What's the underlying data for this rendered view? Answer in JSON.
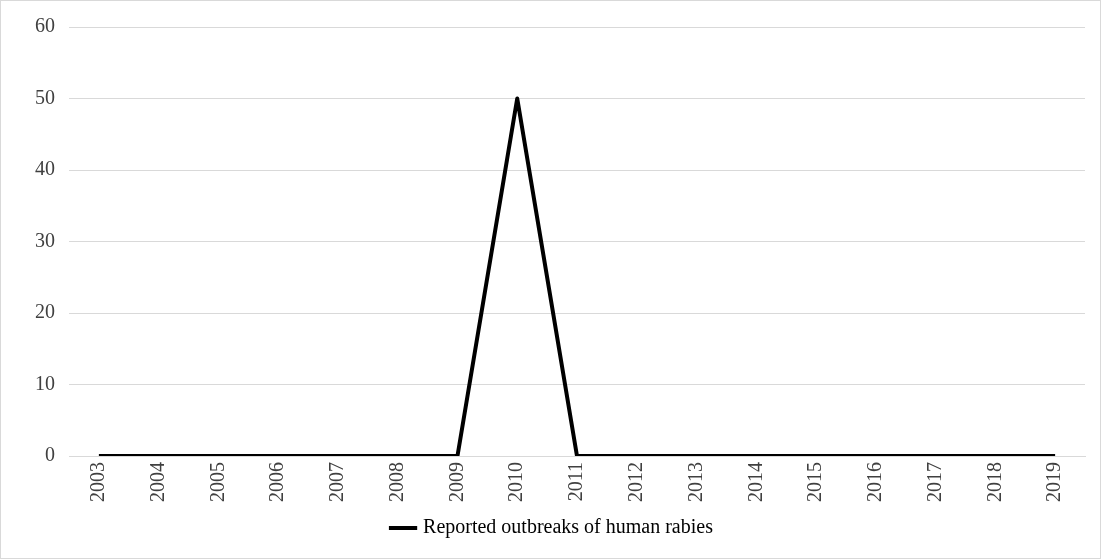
{
  "chart_data": {
    "type": "line",
    "categories": [
      "2003",
      "2004",
      "2005",
      "2006",
      "2007",
      "2008",
      "2009",
      "2010",
      "2011",
      "2012",
      "2013",
      "2014",
      "2015",
      "2016",
      "2017",
      "2018",
      "2019"
    ],
    "series": [
      {
        "name": "Reported outbreaks of human rabies",
        "color": "#000000",
        "values": [
          0,
          0,
          0,
          0,
          0,
          0,
          0,
          50,
          0,
          0,
          0,
          0,
          0,
          0,
          0,
          0,
          0
        ]
      }
    ],
    "ylim": [
      0,
      60
    ],
    "yticks": [
      0,
      10,
      20,
      30,
      40,
      50,
      60
    ],
    "grid": "y",
    "legend": "bottom",
    "marker": "none"
  }
}
